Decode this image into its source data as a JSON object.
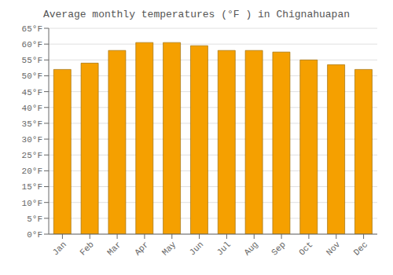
{
  "chart_data": {
    "type": "bar",
    "title": "Average monthly temperatures (°F ) in Chignahuapan",
    "categories": [
      "Jan",
      "Feb",
      "Mar",
      "Apr",
      "May",
      "Jun",
      "Jul",
      "Aug",
      "Sep",
      "Oct",
      "Nov",
      "Dec"
    ],
    "values": [
      52,
      54,
      58,
      60.5,
      60.5,
      59.5,
      58,
      58,
      57.5,
      55,
      53.5,
      52
    ],
    "color": "#F5A000",
    "ylim": [
      0,
      65
    ],
    "yticks": [
      {
        "value": 0,
        "label": "0°F"
      },
      {
        "value": 5,
        "label": "5°F"
      },
      {
        "value": 10,
        "label": "10°F"
      },
      {
        "value": 15,
        "label": "15°F"
      },
      {
        "value": 20,
        "label": "20°F"
      },
      {
        "value": 25,
        "label": "25°F"
      },
      {
        "value": 30,
        "label": "30°F"
      },
      {
        "value": 35,
        "label": "35°F"
      },
      {
        "value": 40,
        "label": "40°F"
      },
      {
        "value": 45,
        "label": "45°F"
      },
      {
        "value": 50,
        "label": "50°F"
      },
      {
        "value": 55,
        "label": "55°F"
      },
      {
        "value": 60,
        "label": "60°F"
      },
      {
        "value": 65,
        "label": "65°F"
      }
    ],
    "grid": true
  }
}
